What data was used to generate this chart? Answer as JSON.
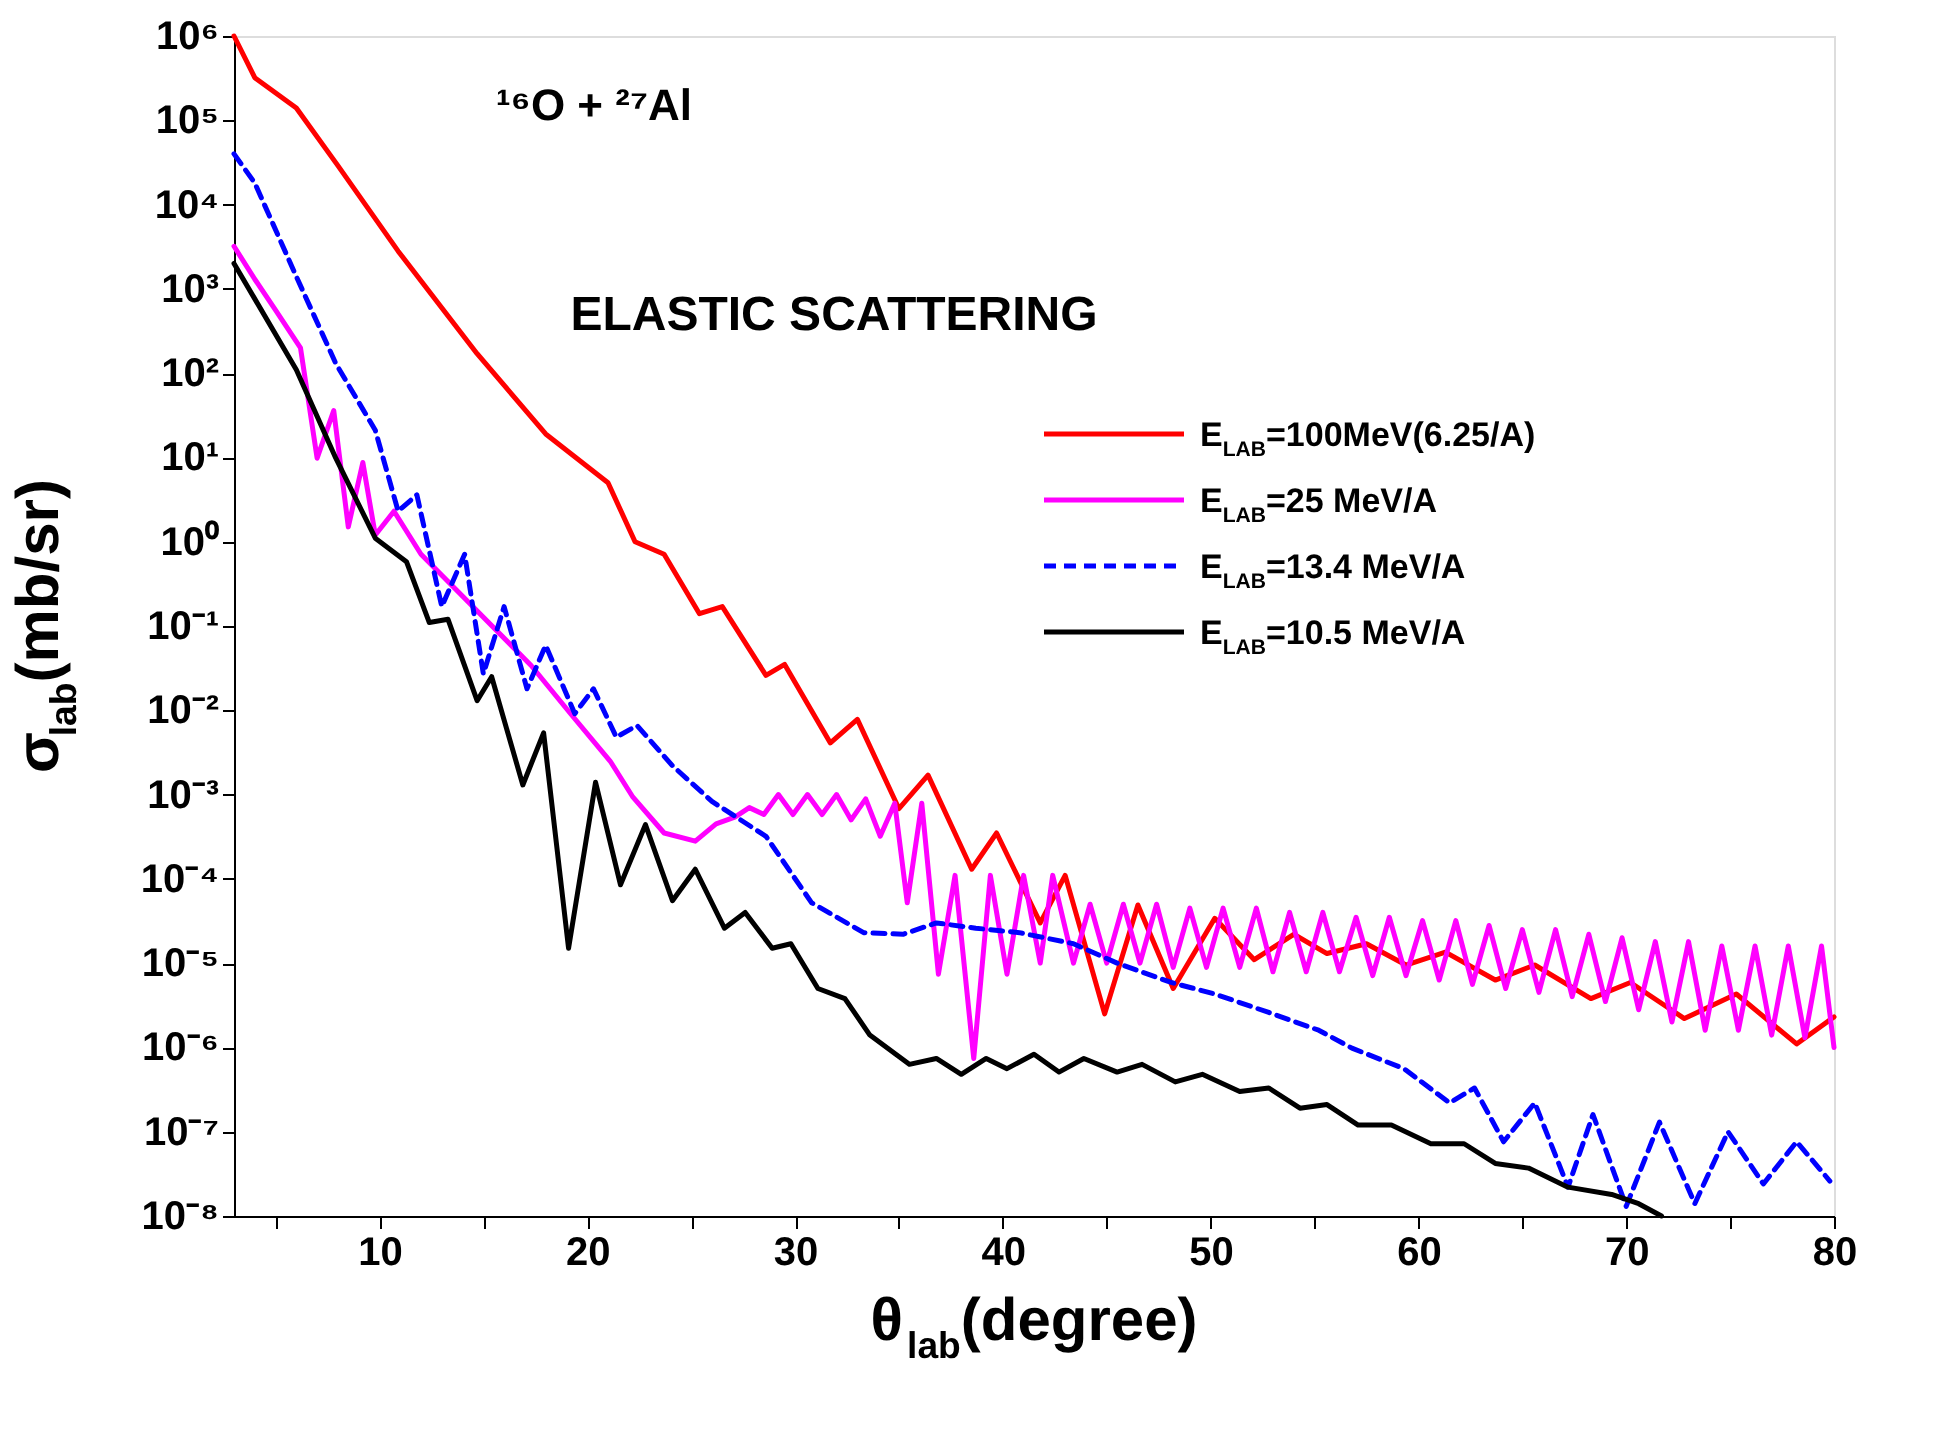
{
  "chart_data": {
    "type": "line",
    "xlabel": "θ$_{lab}$(degree)",
    "ylabel": "σ$_{lab}$(mb/sr)",
    "annotations": [
      "¹⁶O + ²⁷Al",
      "ELASTIC SCATTERING"
    ],
    "xlim": [
      3,
      80
    ],
    "ylim": [
      1e-08,
      1000000
    ],
    "log": "y",
    "grid": false,
    "legend": "top right",
    "marker": "none",
    "xticks": [
      {
        "value": 5,
        "label": null
      },
      10,
      {
        "value": 15,
        "label": null
      },
      20,
      {
        "value": 25,
        "label": null
      },
      30,
      {
        "value": 35,
        "label": null
      },
      40,
      {
        "value": 45,
        "label": null
      },
      50,
      {
        "value": 55,
        "label": null
      },
      60,
      {
        "value": 65,
        "label": null
      },
      70,
      {
        "value": 75,
        "label": null
      },
      80
    ],
    "yticks": [
      {
        "value": 1000000,
        "label": "10⁶"
      },
      {
        "value": 100000,
        "label": "10⁵"
      },
      {
        "value": 10000,
        "label": "10⁴"
      },
      {
        "value": 1000,
        "label": "10³"
      },
      {
        "value": 100,
        "label": "10²"
      },
      {
        "value": 10,
        "label": "10¹"
      },
      {
        "value": 1,
        "label": "10⁰"
      },
      {
        "value": 0.1,
        "label": "10⁻¹"
      },
      {
        "value": 0.01,
        "label": "10⁻²"
      },
      {
        "value": 0.001,
        "label": "10⁻³"
      },
      {
        "value": 0.0001,
        "label": "10⁻⁴"
      },
      {
        "value": 1e-05,
        "label": "10⁻⁵"
      },
      {
        "value": 1e-06,
        "label": "10⁻⁶"
      },
      {
        "value": 1e-07,
        "label": "10⁻⁷"
      },
      {
        "value": 1e-08,
        "label": "10⁻⁸"
      }
    ],
    "series": [
      {
        "name": "E$_{LAB}$=100MeV(6.25/A)",
        "color": "#ff0000",
        "line_style": "solid",
        "x": [
          3,
          4,
          6,
          8,
          10.9,
          14.7,
          18,
          21,
          22.3,
          23.7,
          25.4,
          26.5,
          28.6,
          29.5,
          31.7,
          33,
          35,
          36.4,
          38.5,
          39.7,
          41.8,
          43,
          44.9,
          46.5,
          48.2,
          50.2,
          52.1,
          54,
          55.6,
          57.5,
          59.4,
          61.3,
          63.7,
          65.6,
          68.3,
          70.2,
          72.8,
          75.3,
          78.2,
          80
        ],
        "values": [
          1000000,
          320000,
          140000,
          29000,
          2800,
          170,
          19,
          5,
          1,
          0.71,
          0.14,
          0.17,
          0.026,
          0.035,
          0.0041,
          0.0078,
          0.00068,
          0.0017,
          0.00013,
          0.00035,
          3e-05,
          0.00011,
          2.5e-06,
          4.9e-05,
          5e-06,
          3.4e-05,
          1.1e-05,
          2.2e-05,
          1.3e-05,
          1.7e-05,
          9.5e-06,
          1.35e-05,
          6.3e-06,
          9.5e-06,
          3.8e-06,
          5.9e-06,
          2.2e-06,
          4.3e-06,
          1.1e-06,
          2.3e-06
        ]
      },
      {
        "name": "E$_{LAB}$=25 MeV/A",
        "color": "#ff00ff",
        "line_style": "solid",
        "x": [
          3,
          4,
          5,
          6.2,
          7,
          7.8,
          8.5,
          9.2,
          9.8,
          10.7,
          12,
          14.3,
          17.3,
          19.2,
          21.1,
          22.2,
          23.7,
          25.2,
          26.2,
          27.1,
          27.8,
          28.5,
          29.2,
          29.9,
          30.6,
          31.3,
          32,
          32.7,
          33.4,
          34.1,
          34.8,
          35.4,
          36.1,
          36.9,
          37.7,
          38.6,
          39.4,
          40.2,
          41,
          41.8,
          42.4,
          43.4,
          44.2,
          45,
          45.8,
          46.6,
          47.4,
          48.2,
          49,
          49.8,
          50.6,
          51.4,
          52.2,
          53,
          53.8,
          54.6,
          55.4,
          56.2,
          57,
          57.8,
          58.6,
          59.4,
          60.2,
          61,
          61.8,
          62.6,
          63.4,
          64.2,
          65,
          65.8,
          66.6,
          67.4,
          68.2,
          69,
          69.8,
          70.6,
          71.4,
          72.2,
          73,
          73.8,
          74.6,
          75.4,
          76.2,
          77,
          77.8,
          78.6,
          79.4,
          80
        ],
        "values": [
          3200,
          1300,
          560,
          200,
          9.8,
          36,
          1.5,
          8.7,
          1.2,
          2.3,
          0.71,
          0.19,
          0.034,
          0.0091,
          0.0025,
          0.00093,
          0.00035,
          0.00028,
          0.00045,
          0.00054,
          0.0007,
          0.00058,
          0.001,
          0.00058,
          0.001,
          0.00058,
          0.001,
          0.0005,
          0.00089,
          0.00032,
          0.00079,
          5.2e-05,
          0.00079,
          7.4e-06,
          0.00011,
          7.4e-07,
          0.00011,
          7.4e-06,
          0.00011,
          1e-05,
          0.00011,
          1e-05,
          5e-05,
          1e-05,
          5e-05,
          1e-05,
          5e-05,
          8.9e-06,
          4.5e-05,
          8.9e-06,
          4.5e-05,
          8.9e-06,
          4.5e-05,
          7.9e-06,
          4e-05,
          7.9e-06,
          4e-05,
          7.9e-06,
          3.5e-05,
          7.1e-06,
          3.5e-05,
          7.1e-06,
          3.2e-05,
          6.3e-06,
          3.2e-05,
          5.6e-06,
          2.8e-05,
          5e-06,
          2.5e-05,
          4.5e-06,
          2.5e-05,
          4e-06,
          2.2e-05,
          3.5e-06,
          2e-05,
          2.8e-06,
          1.8e-05,
          2e-06,
          1.8e-05,
          1.6e-06,
          1.6e-05,
          1.6e-06,
          1.6e-05,
          1.4e-06,
          1.6e-05,
          1.3e-06,
          1.6e-05,
          1e-06
        ]
      },
      {
        "name": "E$_{LAB}$=13.4 MeV/A",
        "color": "#0000ff",
        "line_style": "dashed",
        "x": [
          3,
          4,
          6,
          7.9,
          9.8,
          10.9,
          11.8,
          13,
          14.1,
          15,
          16,
          17.1,
          18,
          19.4,
          20.3,
          21.4,
          22.4,
          24.1,
          26,
          28.6,
          30.8,
          33.3,
          35.2,
          36.8,
          38.7,
          40.8,
          43.4,
          45.5,
          48.1,
          50.2,
          52.8,
          55.2,
          56.8,
          59.3,
          61.5,
          62.7,
          64.1,
          65.6,
          67.2,
          68.4,
          70,
          71.6,
          73.3,
          74.9,
          76.6,
          78.2,
          79.8
        ],
        "values": [
          40000,
          18000,
          1400,
          130,
          21,
          2.3,
          3.6,
          0.17,
          0.71,
          0.027,
          0.17,
          0.018,
          0.059,
          0.0091,
          0.018,
          0.0048,
          0.0066,
          0.0022,
          0.00083,
          0.00032,
          5.2e-05,
          2.3e-05,
          2.2e-05,
          3e-05,
          2.6e-05,
          2.3e-05,
          1.7e-05,
          1e-05,
          5.9e-06,
          4.3e-06,
          2.6e-06,
          1.6e-06,
          9.8e-07,
          5.6e-07,
          2.2e-07,
          3.3e-07,
          7.6e-08,
          2.2e-07,
          2.2e-08,
          1.6e-07,
          1.3e-08,
          1.3e-07,
          1.4e-08,
          1e-07,
          2.4e-08,
          7.6e-08,
          2.6e-08
        ]
      },
      {
        "name": "E$_{LAB}$=10.5 MeV/A",
        "color": "#000000",
        "line_style": "solid",
        "x": [
          3,
          6,
          7.9,
          9.8,
          11.3,
          12.4,
          13.3,
          14.7,
          15.4,
          16.9,
          17.9,
          19.1,
          20.4,
          21.6,
          22.8,
          24.1,
          25.2,
          26.6,
          27.6,
          28.9,
          29.8,
          31.1,
          32.4,
          33.6,
          35.5,
          36.8,
          38,
          39.2,
          40.2,
          41.5,
          42.7,
          43.9,
          45.5,
          46.7,
          48.3,
          49.6,
          51.4,
          52.8,
          54.3,
          55.6,
          57.1,
          58.7,
          60.6,
          62.2,
          63.7,
          65.3,
          67.2,
          69.3,
          70.6,
          71.7
        ],
        "values": [
          2000,
          110,
          9.8,
          1.1,
          0.58,
          0.11,
          0.12,
          0.013,
          0.025,
          0.0013,
          0.0054,
          1.5e-05,
          0.0014,
          8.5e-05,
          0.00044,
          5.5e-05,
          0.00013,
          2.6e-05,
          4e-05,
          1.5e-05,
          1.7e-05,
          5e-06,
          3.8e-06,
          1.4e-06,
          6.3e-07,
          7.4e-07,
          4.8e-07,
          7.4e-07,
          5.6e-07,
          8.3e-07,
          5.1e-07,
          7.4e-07,
          5.1e-07,
          6.3e-07,
          3.9e-07,
          4.8e-07,
          3e-07,
          3.3e-07,
          1.9e-07,
          2.1e-07,
          1.2e-07,
          1.2e-07,
          7.2e-08,
          7.2e-08,
          4.2e-08,
          3.7e-08,
          2.2e-08,
          1.8e-08,
          1.4e-08,
          1e-08
        ]
      }
    ]
  }
}
